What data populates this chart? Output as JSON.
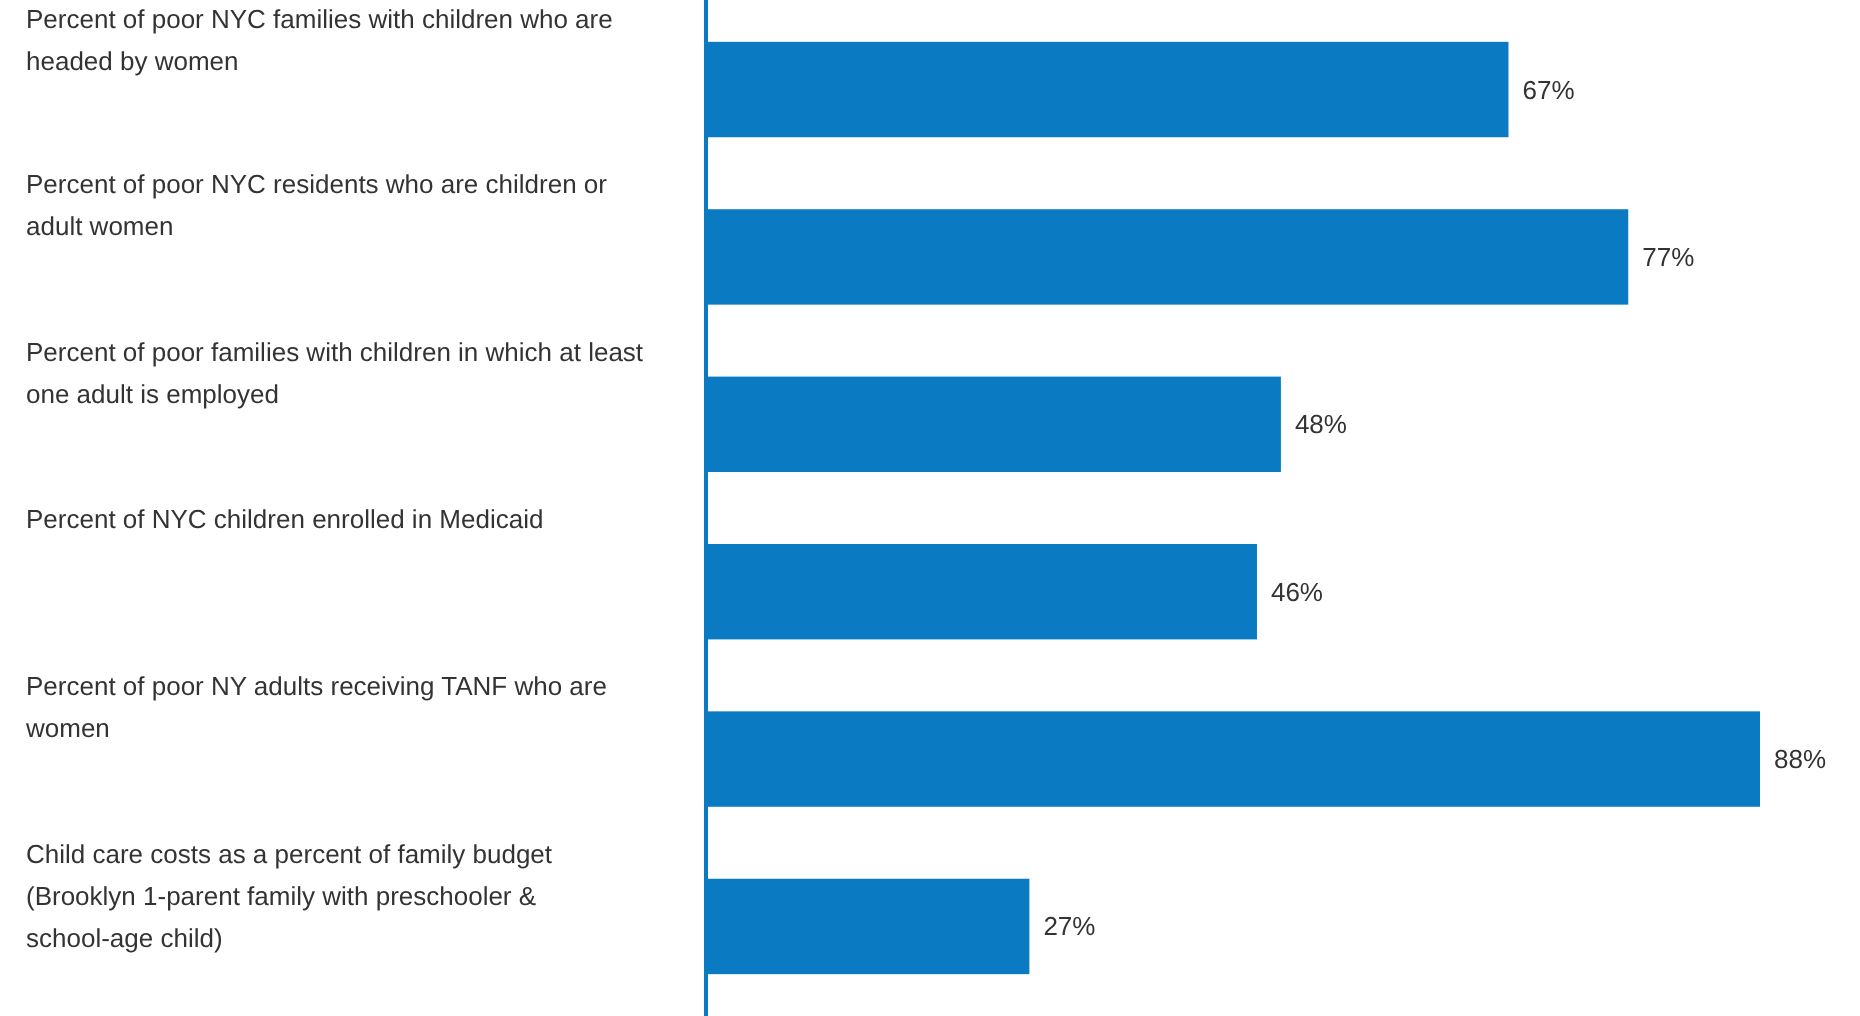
{
  "chart_data": {
    "type": "bar",
    "orientation": "horizontal",
    "categories": [
      "Percent of poor NYC families with children who are headed by women",
      "Percent of poor NYC residents who are children or adult women",
      "Percent of poor families with children in which at least one adult is employed",
      "Percent of NYC children enrolled in Medicaid",
      "Percent of poor NY adults receiving TANF who are women",
      "Child care costs as a percent of family budget (Brooklyn 1-parent family with preschooler & school-age child)"
    ],
    "values": [
      67,
      77,
      48,
      46,
      88,
      27
    ],
    "value_labels": [
      "67%",
      "77%",
      "48%",
      "46%",
      "88%",
      "27%"
    ],
    "color": "#0a7bc2"
  }
}
